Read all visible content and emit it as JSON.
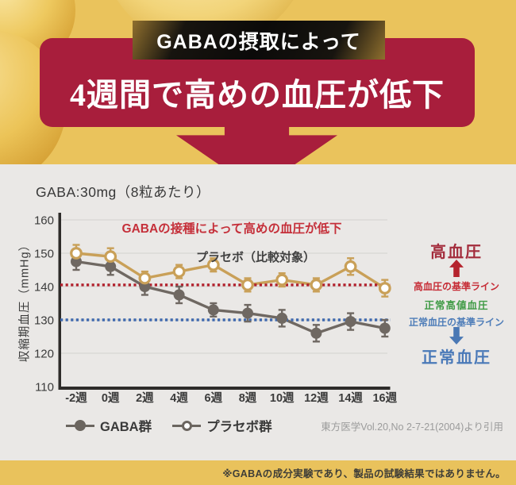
{
  "header": {
    "badge_label": "GABAの摂取によって",
    "headline": "4週間で高めの血圧が低下"
  },
  "panel": {
    "dose_label": "GABA:30mg（8粒あたり）",
    "citation": "東方医学Vol.20,No 2-7-21(2004)より引用"
  },
  "side_labels": {
    "high_bp": "高血圧",
    "high_bp_line": "高血圧の基準ライン",
    "normal_high_bp": "正常高値血圧",
    "normal_bp_line": "正常血圧の基準ライン",
    "normal_bp": "正常血圧"
  },
  "footer": {
    "disclaimer": "※GABAの成分実験であり、製品の試験結果ではありません。"
  },
  "colors": {
    "crimson_banner": "#a81e3c",
    "gold_background": "#eac35c",
    "panel_gray": "#eae8e6",
    "title_red": "#c5303a",
    "gaba_series": "#6f6862",
    "placebo_series": "#c9a058",
    "high_reference_red": "#b1202c",
    "normal_reference_blue": "#3f69ae",
    "high_bp_label_red": "#a32c3c",
    "normal_high_label_green": "#3e9a44",
    "normal_bp_label_blue": "#4a79b8",
    "axis_dark": "#2e2c2a"
  },
  "chart_data": {
    "type": "line",
    "title": "GABAの接種によって高めの血圧が低下",
    "annotation": "プラセボ（比較対象）",
    "ylabel": "収縮期血圧（mmHg）",
    "ylim": [
      110,
      160
    ],
    "yticks": [
      110,
      120,
      130,
      140,
      150,
      160
    ],
    "grid": true,
    "legend_position": "bottom",
    "categories": [
      "-2週",
      "0週",
      "2週",
      "4週",
      "6週",
      "8週",
      "10週",
      "12週",
      "14週",
      "16週"
    ],
    "series": [
      {
        "name": "GABA群",
        "marker": "filled-circle",
        "color": "#6f6862",
        "values": [
          147.5,
          146,
          140,
          137.5,
          133,
          132,
          130.5,
          126,
          129.5,
          127.5
        ],
        "errors": [
          2.5,
          2.5,
          2.5,
          2.5,
          2,
          2.5,
          2.5,
          2.5,
          2.5,
          2.5
        ]
      },
      {
        "name": "プラセボ群",
        "marker": "open-circle",
        "color": "#c9a058",
        "values": [
          150,
          149,
          142.5,
          144.5,
          146.5,
          140.5,
          142,
          140.5,
          146,
          139.5
        ],
        "errors": [
          2.5,
          2.5,
          2,
          2,
          2,
          2,
          2,
          2,
          2.5,
          2.5
        ]
      }
    ],
    "reference_lines": [
      {
        "value": 140.5,
        "style": "dotted",
        "color": "#b1202c",
        "label": "高血圧の基準ライン"
      },
      {
        "value": 130,
        "style": "dotted",
        "color": "#3f69ae",
        "label": "正常血圧の基準ライン"
      }
    ]
  }
}
